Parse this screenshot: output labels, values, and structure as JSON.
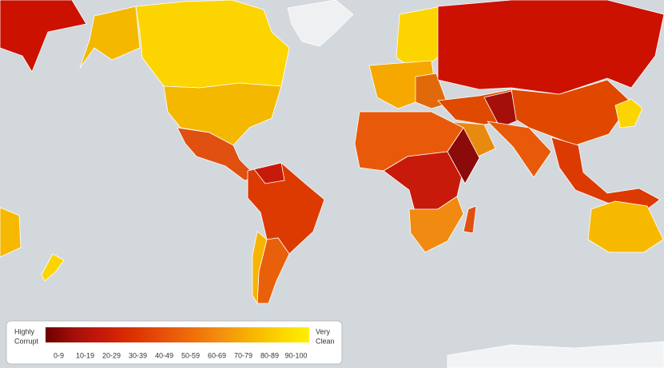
{
  "legend": {
    "low_label": [
      "Highly",
      "Corrupt"
    ],
    "high_label": [
      "Very",
      "Clean"
    ],
    "bins": [
      {
        "label": "0-9",
        "color": "#6e0000"
      },
      {
        "label": "10-19",
        "color": "#a50f0a"
      },
      {
        "label": "20-29",
        "color": "#c81a0a"
      },
      {
        "label": "30-39",
        "color": "#dc3200"
      },
      {
        "label": "40-49",
        "color": "#e6500a"
      },
      {
        "label": "50-59",
        "color": "#ee6e0a"
      },
      {
        "label": "60-69",
        "color": "#f39010"
      },
      {
        "label": "70-79",
        "color": "#f7b400"
      },
      {
        "label": "80-89",
        "color": "#fbd400"
      },
      {
        "label": "90-100",
        "color": "#fff000"
      }
    ]
  }
}
